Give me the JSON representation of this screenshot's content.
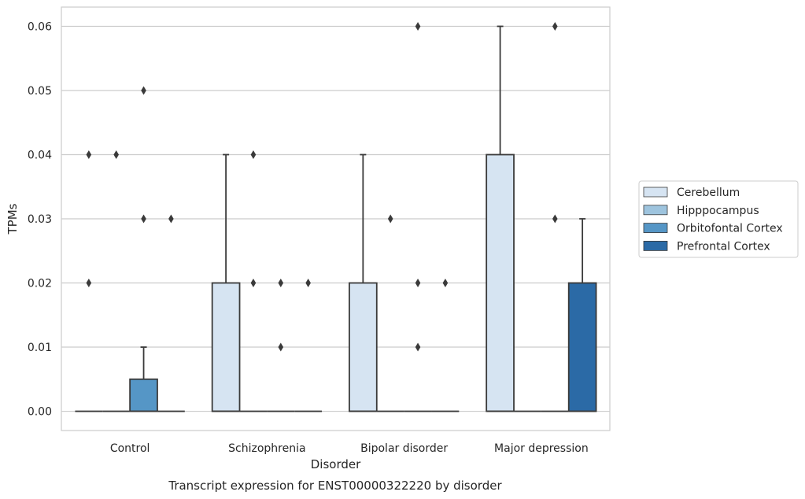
{
  "chart_data": {
    "type": "box",
    "caption": "Transcript expression for ENST00000322220 by disorder",
    "xlabel": "Disorder",
    "ylabel": "TPMs",
    "ylim": [
      -0.003,
      0.063
    ],
    "yticks": [
      "0.00",
      "0.01",
      "0.02",
      "0.03",
      "0.04",
      "0.05",
      "0.06"
    ],
    "grid": true,
    "legend_placement": "right",
    "categories": [
      "Control",
      "Schizophrenia",
      "Bipolar disorder",
      "Major depression"
    ],
    "series": [
      {
        "name": "Cerebellum",
        "color": "#d6e4f2",
        "boxes": [
          {
            "q1": 0,
            "median": 0,
            "q3": 0,
            "whisker_low": 0,
            "whisker_high": 0,
            "outliers": [
              0.02,
              0.04
            ]
          },
          {
            "q1": 0,
            "median": 0,
            "q3": 0.02,
            "whisker_low": 0,
            "whisker_high": 0.04,
            "outliers": []
          },
          {
            "q1": 0,
            "median": 0,
            "q3": 0.02,
            "whisker_low": 0,
            "whisker_high": 0.04,
            "outliers": []
          },
          {
            "q1": 0,
            "median": 0,
            "q3": 0.04,
            "whisker_low": 0,
            "whisker_high": 0.06,
            "outliers": []
          }
        ]
      },
      {
        "name": "Hipppocampus",
        "color": "#9ec4de",
        "boxes": [
          {
            "q1": 0,
            "median": 0,
            "q3": 0,
            "whisker_low": 0,
            "whisker_high": 0,
            "outliers": [
              0.04
            ]
          },
          {
            "q1": 0,
            "median": 0,
            "q3": 0,
            "whisker_low": 0,
            "whisker_high": 0,
            "outliers": [
              0.02,
              0.04
            ]
          },
          {
            "q1": 0,
            "median": 0,
            "q3": 0,
            "whisker_low": 0,
            "whisker_high": 0,
            "outliers": [
              0.03
            ]
          },
          {
            "q1": 0,
            "median": 0,
            "q3": 0,
            "whisker_low": 0,
            "whisker_high": 0,
            "outliers": []
          }
        ]
      },
      {
        "name": "Orbitofontal Cortex",
        "color": "#5596c6",
        "boxes": [
          {
            "q1": 0,
            "median": 0,
            "q3": 0.005,
            "whisker_low": 0,
            "whisker_high": 0.01,
            "outliers": [
              0.03,
              0.05
            ]
          },
          {
            "q1": 0,
            "median": 0,
            "q3": 0,
            "whisker_low": 0,
            "whisker_high": 0,
            "outliers": [
              0.01,
              0.02
            ]
          },
          {
            "q1": 0,
            "median": 0,
            "q3": 0,
            "whisker_low": 0,
            "whisker_high": 0,
            "outliers": [
              0.01,
              0.02,
              0.06
            ]
          },
          {
            "q1": 0,
            "median": 0,
            "q3": 0,
            "whisker_low": 0,
            "whisker_high": 0,
            "outliers": [
              0.03,
              0.06
            ]
          }
        ]
      },
      {
        "name": "Prefrontal Cortex",
        "color": "#2b6aa6",
        "boxes": [
          {
            "q1": 0,
            "median": 0,
            "q3": 0,
            "whisker_low": 0,
            "whisker_high": 0,
            "outliers": [
              0.03
            ]
          },
          {
            "q1": 0,
            "median": 0,
            "q3": 0,
            "whisker_low": 0,
            "whisker_high": 0,
            "outliers": [
              0.02
            ]
          },
          {
            "q1": 0,
            "median": 0,
            "q3": 0,
            "whisker_low": 0,
            "whisker_high": 0,
            "outliers": [
              0.02
            ]
          },
          {
            "q1": 0,
            "median": 0,
            "q3": 0.02,
            "whisker_low": 0,
            "whisker_high": 0.03,
            "outliers": []
          }
        ]
      }
    ]
  }
}
